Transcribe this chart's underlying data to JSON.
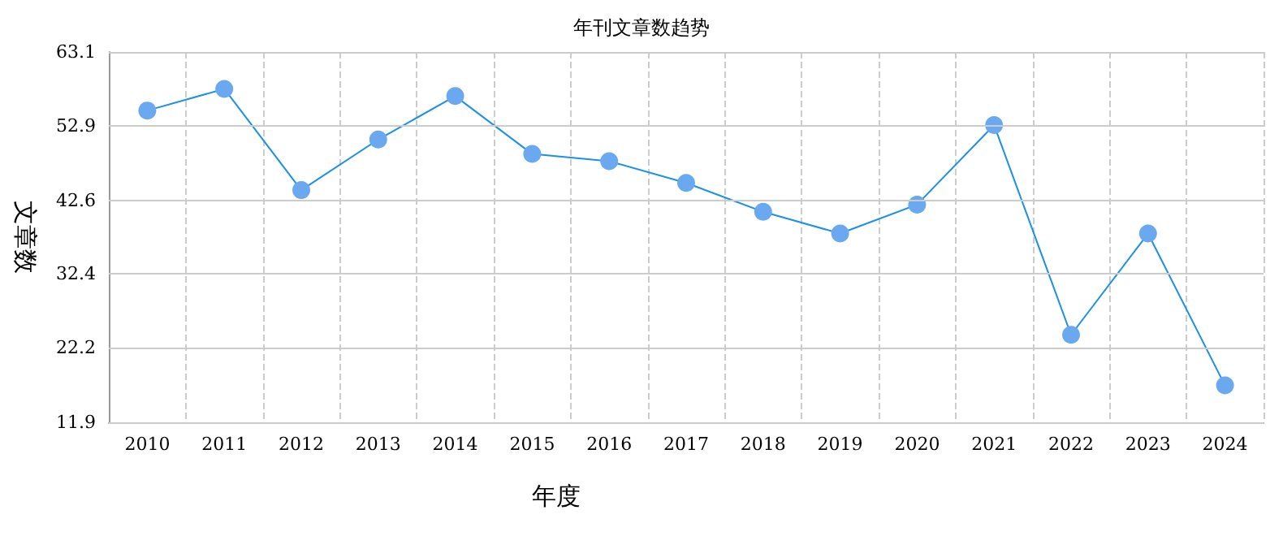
{
  "chart_data": {
    "type": "line",
    "title": "年刊文章数趋势",
    "xlabel": "年度",
    "ylabel": "文章数",
    "categories": [
      "2010",
      "2011",
      "2012",
      "2013",
      "2014",
      "2015",
      "2016",
      "2017",
      "2018",
      "2019",
      "2020",
      "2021",
      "2022",
      "2023",
      "2024"
    ],
    "series": [
      {
        "color": "#1a90e8",
        "values": [
          55,
          58,
          44,
          51,
          57,
          49,
          48,
          45,
          41,
          38,
          42,
          53,
          24,
          38,
          17
        ]
      }
    ],
    "ylim": [
      11.9,
      63.1
    ],
    "yticks": [
      11.9,
      22.2,
      32.4,
      42.6,
      52.9,
      63.1
    ],
    "grid": true,
    "marker": "circle",
    "line_style": "solid"
  }
}
